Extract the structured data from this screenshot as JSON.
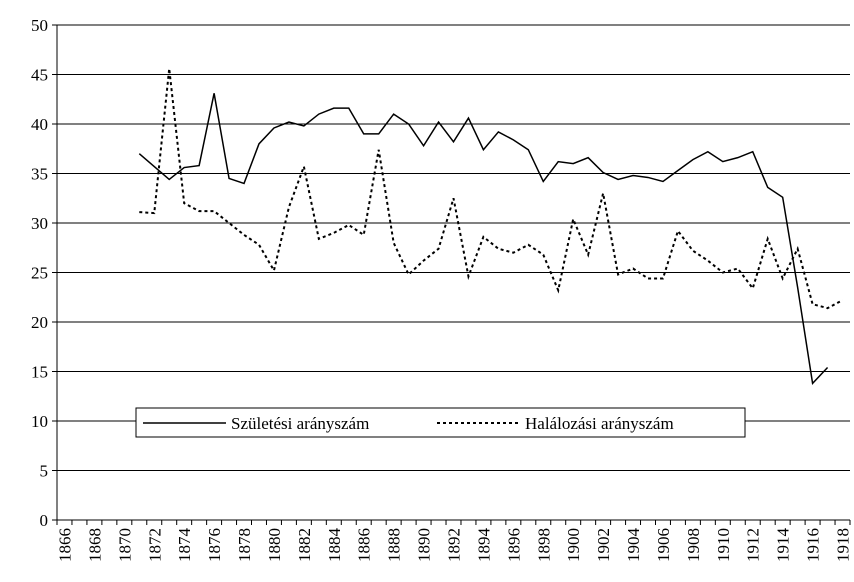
{
  "chart_data": {
    "type": "line",
    "categories": [
      "1866",
      null,
      "1868",
      null,
      "1870",
      null,
      "1872",
      null,
      "1874",
      null,
      "1876",
      null,
      "1878",
      null,
      "1880",
      null,
      "1882",
      null,
      "1884",
      null,
      "1886",
      null,
      "1888",
      null,
      "1890",
      null,
      "1892",
      null,
      "1894",
      null,
      "1896",
      null,
      "1898",
      null,
      "1900",
      null,
      "1902",
      null,
      "1904",
      null,
      "1906",
      null,
      "1908",
      null,
      "1910",
      null,
      "1912",
      null,
      "1914",
      null,
      "1916",
      null,
      "1918"
    ],
    "series": [
      {
        "name": "Születési arányszám",
        "color": "#000000",
        "style": "solid",
        "values": [
          null,
          null,
          null,
          null,
          null,
          37.0,
          35.7,
          34.4,
          35.6,
          35.8,
          43.1,
          34.5,
          34.0,
          38.0,
          39.6,
          40.2,
          39.8,
          41.0,
          41.6,
          41.6,
          39.0,
          39.0,
          41.0,
          40.0,
          37.8,
          40.2,
          38.2,
          40.6,
          37.4,
          39.2,
          38.4,
          37.4,
          34.2,
          36.2,
          36.0,
          36.6,
          35.1,
          34.4,
          34.8,
          34.6,
          34.2,
          35.3,
          36.4,
          37.2,
          36.2,
          36.6,
          37.2,
          33.6,
          32.6,
          23.5,
          13.8,
          15.4,
          null
        ]
      },
      {
        "name": "Halálozási arányszám",
        "color": "#000000",
        "style": "dotted",
        "values": [
          null,
          null,
          null,
          null,
          null,
          31.1,
          31.0,
          45.6,
          32.0,
          31.2,
          31.2,
          30.0,
          28.8,
          27.8,
          25.2,
          31.6,
          35.7,
          28.4,
          29.0,
          29.8,
          28.8,
          37.4,
          28.0,
          24.8,
          26.2,
          27.4,
          32.5,
          24.6,
          28.6,
          27.4,
          27.0,
          27.8,
          26.8,
          23.2,
          30.4,
          26.8,
          33.0,
          24.8,
          25.4,
          24.4,
          24.4,
          29.2,
          27.2,
          26.2,
          25.0,
          25.4,
          23.4,
          28.4,
          24.4,
          27.4,
          21.8,
          21.4,
          22.2
        ]
      }
    ],
    "ylim": [
      0,
      50
    ],
    "yticks": [
      0,
      5,
      10,
      15,
      20,
      25,
      30,
      35,
      40,
      45,
      50
    ],
    "grid": true
  }
}
